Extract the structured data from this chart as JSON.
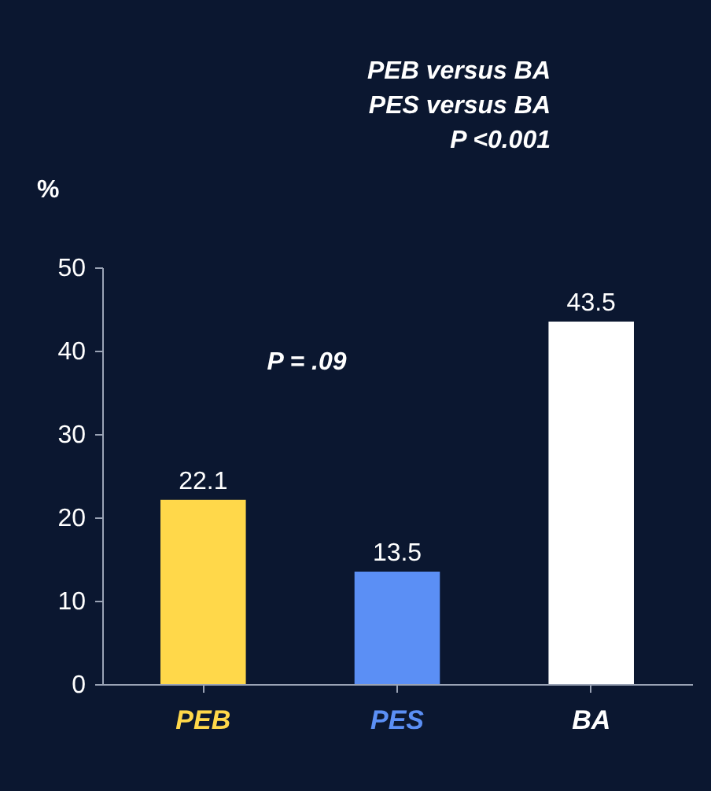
{
  "chart_data": {
    "type": "bar",
    "ylabel": "%",
    "categories": [
      "PEB",
      "PES",
      "BA"
    ],
    "values": [
      22.1,
      13.5,
      43.5
    ],
    "colors": [
      "#ffd84a",
      "#5b8ff5",
      "#ffffff"
    ],
    "ylim": [
      0,
      50
    ],
    "yticks": [
      0,
      10,
      20,
      30,
      40,
      50
    ],
    "grid": false,
    "legend": false,
    "data_labels": true,
    "annotations": [
      "PEB versus BA",
      "PES versus BA",
      "P <0.001",
      "P = .09"
    ]
  }
}
